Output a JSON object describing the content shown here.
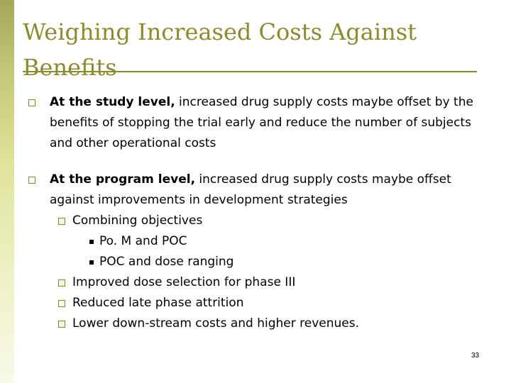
{
  "slide": {
    "title": "Weighing Increased Costs Against Benefits",
    "page_number": "33"
  },
  "bullets": [
    {
      "lead": "At the study level,",
      "text": " increased drug supply costs maybe offset by the benefits of stopping the trial early and reduce the number of subjects and other operational costs"
    },
    {
      "lead": "At the program level,",
      "text": " increased drug supply costs maybe offset against improvements in development strategies"
    }
  ],
  "sub_items": {
    "combining": "Combining objectives",
    "pom_poc": "Po. M and POC",
    "poc_dose": "POC and dose ranging",
    "dose_selection": "Improved dose selection for phase III",
    "attrition": "Reduced late phase attrition",
    "downstream": "Lower down-stream costs and higher revenues."
  }
}
